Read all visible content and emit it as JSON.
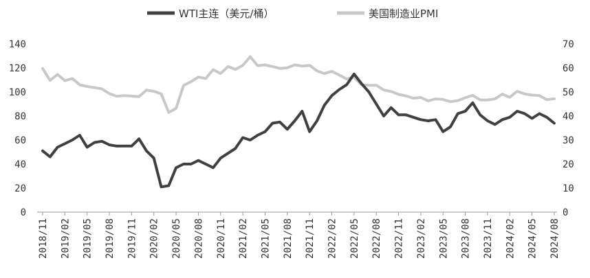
{
  "chart_data": {
    "type": "line",
    "title": "",
    "x": [
      "2018/11",
      "2018/12",
      "2019/01",
      "2019/02",
      "2019/03",
      "2019/04",
      "2019/05",
      "2019/06",
      "2019/07",
      "2019/08",
      "2019/09",
      "2019/10",
      "2019/11",
      "2019/12",
      "2020/01",
      "2020/02",
      "2020/03",
      "2020/04",
      "2020/05",
      "2020/06",
      "2020/07",
      "2020/08",
      "2020/09",
      "2020/10",
      "2020/11",
      "2020/12",
      "2021/01",
      "2021/02",
      "2021/03",
      "2021/04",
      "2021/05",
      "2021/06",
      "2021/07",
      "2021/08",
      "2021/09",
      "2021/10",
      "2021/11",
      "2021/12",
      "2022/01",
      "2022/02",
      "2022/03",
      "2022/04",
      "2022/05",
      "2022/06",
      "2022/07",
      "2022/08",
      "2022/09",
      "2022/10",
      "2022/11",
      "2022/12",
      "2023/01",
      "2023/02",
      "2023/03",
      "2023/04",
      "2023/05",
      "2023/06",
      "2023/07",
      "2023/08",
      "2023/09",
      "2023/10",
      "2023/11",
      "2023/12",
      "2024/01",
      "2024/02",
      "2024/03",
      "2024/04",
      "2024/05",
      "2024/06",
      "2024/07",
      "2024/08"
    ],
    "x_tick_labels": [
      "2018/11",
      "2019/02",
      "2019/05",
      "2019/08",
      "2019/11",
      "2020/02",
      "2020/05",
      "2020/08",
      "2020/11",
      "2021/02",
      "2021/05",
      "2021/08",
      "2021/11",
      "2022/02",
      "2022/05",
      "2022/08",
      "2022/11",
      "2023/02",
      "2023/05",
      "2023/08",
      "2023/11",
      "2024/02",
      "2024/05",
      "2024/08"
    ],
    "y_left": {
      "ticks": [
        0,
        20,
        40,
        60,
        80,
        100,
        120,
        140
      ],
      "lim": [
        0,
        140
      ]
    },
    "y_right": {
      "ticks": [
        0,
        10,
        20,
        30,
        40,
        50,
        60,
        70
      ],
      "lim": [
        0,
        70
      ]
    },
    "legend_position": "top-center",
    "grid": false,
    "series": [
      {
        "name": "WTI主连（美元/桶）",
        "axis": "left",
        "color": "#404040",
        "values": [
          51,
          46,
          54,
          57,
          60,
          64,
          54,
          58,
          59,
          56,
          55,
          55,
          55,
          61,
          51,
          45,
          21,
          22,
          37,
          40,
          40,
          43,
          40,
          37,
          45,
          49,
          53,
          62,
          60,
          64,
          67,
          74,
          75,
          69,
          76,
          84,
          67,
          76,
          89,
          97,
          102,
          106,
          115,
          107,
          100,
          90,
          80,
          87,
          81,
          81,
          79,
          77,
          76,
          77,
          67,
          71,
          82,
          84,
          91,
          81,
          76,
          73,
          77,
          79,
          84,
          82,
          78,
          82,
          79,
          74
        ]
      },
      {
        "name": "美国制造业PMI",
        "axis": "right",
        "color": "#c8c8c8",
        "values": [
          59.8,
          54.8,
          57.3,
          54.7,
          55.6,
          53,
          52.3,
          51.8,
          51.3,
          49.3,
          48.2,
          48.5,
          48.3,
          48.1,
          50.8,
          50.3,
          49.2,
          41.5,
          43.2,
          52.7,
          54.3,
          56.2,
          55.6,
          59.3,
          57.7,
          60.6,
          59.4,
          61.1,
          64.7,
          60.9,
          61.3,
          60.6,
          59.8,
          60.1,
          61.3,
          60.8,
          61.1,
          58.8,
          57.7,
          58.6,
          57.1,
          55.4,
          56.1,
          53,
          52.8,
          52.8,
          50.9,
          50.2,
          49,
          48.4,
          47.4,
          47.7,
          46.3,
          47.1,
          46.9,
          46,
          46.4,
          47.6,
          48.6,
          46.7,
          46.7,
          47.1,
          49.1,
          47.8,
          50.3,
          49.2,
          48.7,
          48.5,
          46.8,
          47.2
        ]
      }
    ]
  }
}
